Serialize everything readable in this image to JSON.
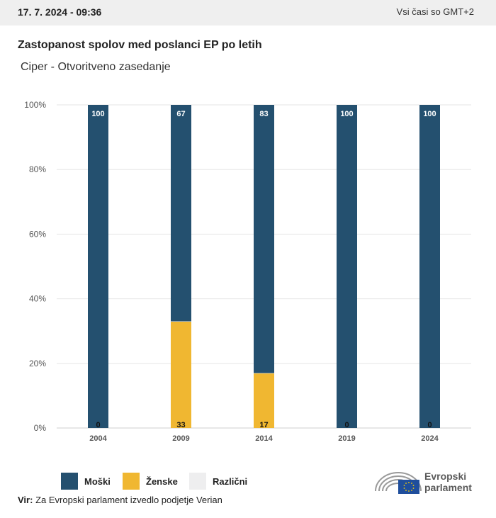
{
  "header": {
    "date": "17. 7. 2024 - 09:36",
    "timezone": "Vsi časi so GMT+2"
  },
  "title": "Zastopanost spolov med poslanci EP po letih",
  "subtitle": "Ciper - Otvoritveno zasedanje",
  "source": {
    "label": "Vir:",
    "text": "Za Evropski parlament izvedlo podjetje Verian"
  },
  "logo": {
    "line1": "Evropski",
    "line2": "parlament"
  },
  "colors": {
    "men": "#24506f",
    "women": "#f0b731",
    "diverse": "#eeeeef",
    "grid": "#e6e6e6"
  },
  "chart_data": {
    "type": "bar",
    "stacked": true,
    "categories": [
      "2004",
      "2009",
      "2014",
      "2019",
      "2024"
    ],
    "series": [
      {
        "name": "Moški",
        "values": [
          100,
          67,
          83,
          100,
          100
        ]
      },
      {
        "name": "Ženske",
        "values": [
          0,
          33,
          17,
          0,
          0
        ]
      },
      {
        "name": "Različni",
        "values": [
          0,
          0,
          0,
          0,
          0
        ]
      }
    ],
    "value_labels": {
      "top": [
        "100",
        "67",
        "83",
        "100",
        "100"
      ],
      "bottom": [
        "0",
        "33",
        "17",
        "0",
        "0"
      ]
    },
    "yticks": [
      "0%",
      "20%",
      "40%",
      "60%",
      "80%",
      "100%"
    ],
    "ylim": [
      0,
      100
    ],
    "grid": true,
    "legend_position": "bottom-left"
  }
}
